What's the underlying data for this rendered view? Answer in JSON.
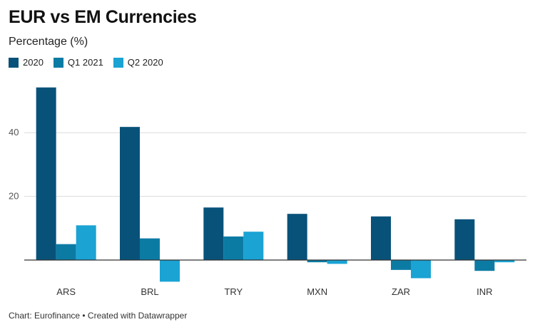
{
  "chart_data": {
    "type": "bar",
    "title": "EUR vs EM Currencies",
    "subtitle": "Percentage (%)",
    "categories": [
      "ARS",
      "BRL",
      "TRY",
      "MXN",
      "ZAR",
      "INR"
    ],
    "series": [
      {
        "name": "2020",
        "color": "#08527a",
        "values": [
          54.2,
          41.8,
          16.5,
          14.5,
          13.7,
          12.8
        ]
      },
      {
        "name": "Q1 2021",
        "color": "#0c7ba4",
        "values": [
          5.0,
          6.8,
          7.4,
          -0.7,
          -3.1,
          -3.4
        ]
      },
      {
        "name": "Q2 2020",
        "color": "#1aa3d3",
        "values": [
          10.9,
          -6.8,
          8.9,
          -1.2,
          -5.7,
          -0.7
        ]
      }
    ],
    "y_ticks": [
      20,
      40
    ],
    "ylim": [
      -7,
      55
    ],
    "grid": true,
    "legend_position": "top-left"
  },
  "footer": "Chart: Eurofinance • Created with Datawrapper"
}
